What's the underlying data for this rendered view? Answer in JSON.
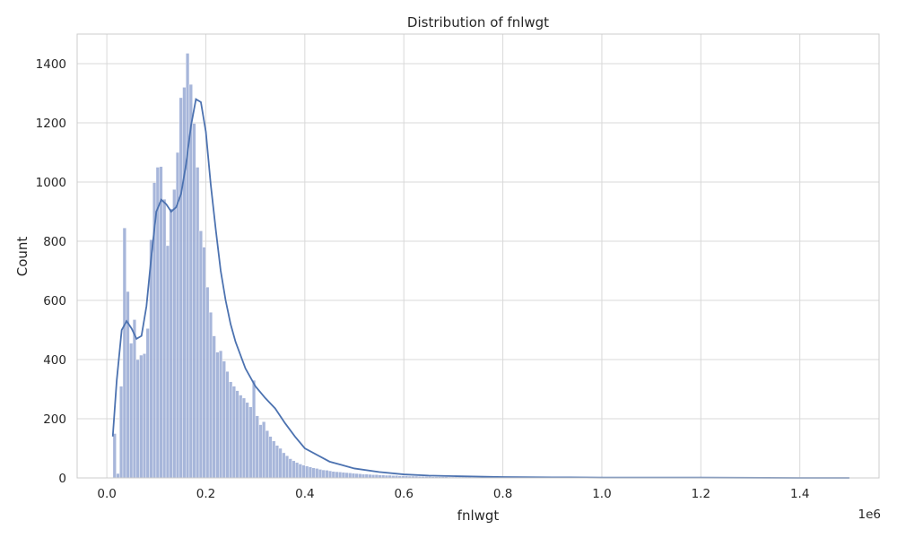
{
  "chart_data": {
    "type": "bar",
    "title": "Distribution of fnlwgt",
    "xlabel": "fnlwgt",
    "ylabel": "Count",
    "x_offset_label": "1e6",
    "xlim": [
      -0.06,
      1.56
    ],
    "ylim": [
      0,
      1500
    ],
    "grid": true,
    "bar_color": "#9daed6",
    "kde_color": "#4c72b0",
    "xticks": [
      0.0,
      0.2,
      0.4,
      0.6,
      0.8,
      1.0,
      1.2,
      1.4
    ],
    "xtick_labels": [
      "0.0",
      "0.2",
      "0.4",
      "0.6",
      "0.8",
      "1.0",
      "1.2",
      "1.4"
    ],
    "yticks": [
      0,
      200,
      400,
      600,
      800,
      1000,
      1200,
      1400
    ],
    "ytick_labels": [
      "0",
      "200",
      "400",
      "600",
      "800",
      "1000",
      "1200",
      "1400"
    ],
    "bin_start": 0.0123,
    "bin_width": 0.0067,
    "counts": [
      150,
      15,
      310,
      845,
      630,
      455,
      535,
      400,
      415,
      420,
      505,
      805,
      998,
      1050,
      1052,
      942,
      785,
      910,
      975,
      1100,
      1285,
      1320,
      1435,
      1330,
      1198,
      1050,
      835,
      780,
      645,
      560,
      480,
      425,
      430,
      395,
      360,
      325,
      310,
      295,
      280,
      270,
      255,
      240,
      330,
      210,
      180,
      190,
      160,
      140,
      125,
      110,
      100,
      85,
      75,
      65,
      58,
      52,
      47,
      43,
      40,
      37,
      34,
      32,
      29,
      27,
      26,
      24,
      22,
      21,
      20,
      19,
      18,
      17,
      16,
      15,
      14,
      13,
      13,
      12,
      11,
      11,
      10,
      10,
      9,
      9,
      8,
      8,
      7,
      7,
      7,
      6,
      6,
      6,
      5,
      5,
      5,
      5,
      4,
      4,
      4,
      4,
      4,
      3,
      3,
      3,
      3,
      3,
      3,
      3,
      2,
      2,
      2,
      2,
      2,
      2,
      2,
      2,
      2,
      1,
      1,
      1,
      1,
      1,
      1,
      1,
      1,
      1,
      1,
      1,
      1,
      1,
      1,
      1,
      1,
      1,
      1,
      1,
      1,
      1,
      1,
      1,
      1,
      1,
      1,
      1,
      1,
      1,
      1,
      1,
      1,
      1,
      1,
      1,
      1,
      1,
      1,
      1,
      1,
      1,
      1,
      1,
      1,
      1,
      1,
      1,
      1,
      1,
      1,
      1,
      1,
      1,
      1,
      1,
      1,
      1,
      1,
      1,
      1,
      1,
      1,
      1,
      1,
      1,
      1,
      1,
      1,
      1,
      1,
      1,
      1,
      1,
      1,
      1,
      1,
      1,
      1,
      1,
      1,
      1,
      1,
      1,
      1,
      1,
      1,
      1,
      1,
      1,
      1,
      1,
      1,
      1,
      1
    ],
    "kde": {
      "x": [
        0.012,
        0.02,
        0.03,
        0.04,
        0.05,
        0.06,
        0.07,
        0.08,
        0.09,
        0.1,
        0.11,
        0.12,
        0.13,
        0.14,
        0.15,
        0.16,
        0.17,
        0.18,
        0.19,
        0.2,
        0.21,
        0.22,
        0.23,
        0.24,
        0.25,
        0.26,
        0.28,
        0.3,
        0.32,
        0.34,
        0.36,
        0.38,
        0.4,
        0.45,
        0.5,
        0.55,
        0.6,
        0.65,
        0.7,
        0.8,
        0.9,
        1.0,
        1.2,
        1.4,
        1.5
      ],
      "y": [
        140,
        330,
        500,
        530,
        505,
        470,
        480,
        580,
        750,
        900,
        940,
        925,
        900,
        915,
        960,
        1060,
        1190,
        1280,
        1270,
        1170,
        990,
        840,
        700,
        600,
        520,
        460,
        370,
        310,
        270,
        235,
        185,
        140,
        100,
        55,
        32,
        20,
        12,
        8,
        6,
        3,
        2,
        1,
        1,
        0,
        0
      ]
    }
  }
}
